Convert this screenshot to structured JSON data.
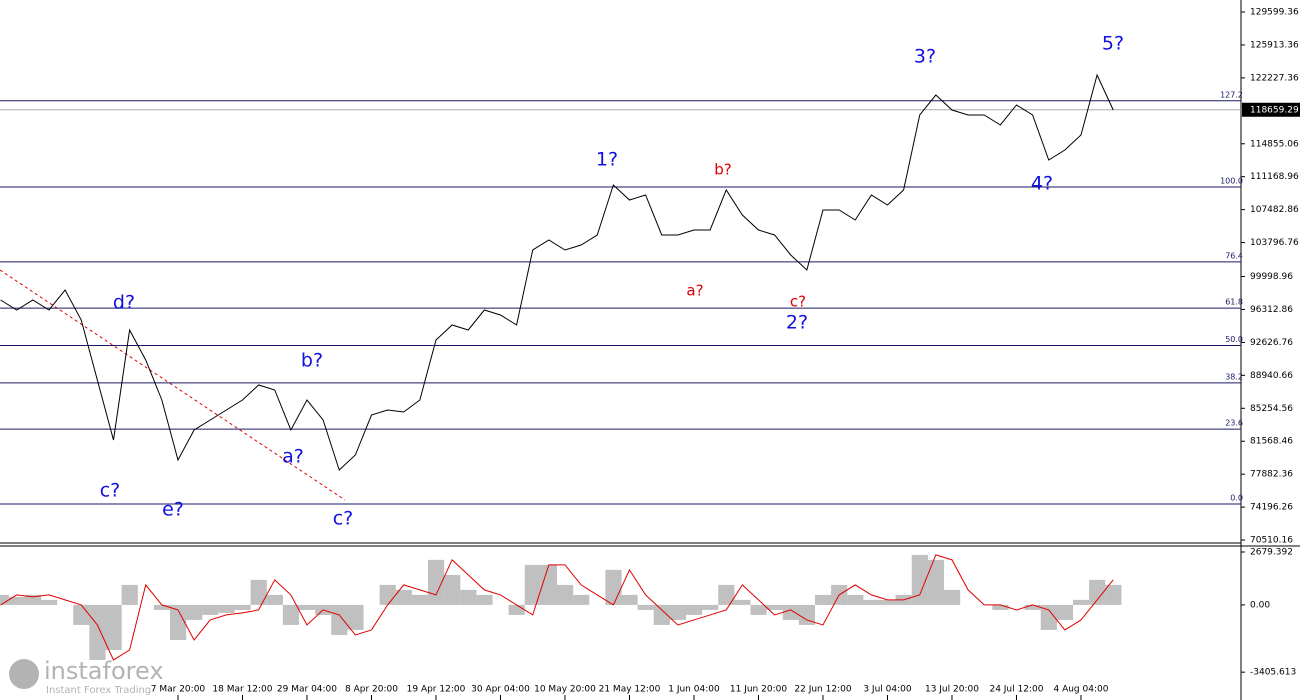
{
  "chart_data": {
    "type": "line",
    "categories": [
      null,
      null,
      null,
      null,
      null,
      null,
      null,
      null,
      null,
      null,
      null,
      "7 Mar 20:00",
      null,
      null,
      null,
      "18 Mar 12:00",
      null,
      null,
      null,
      "29 Mar 04:00",
      null,
      null,
      null,
      "8 Apr 20:00",
      null,
      null,
      null,
      "19 Apr 12:00",
      null,
      null,
      null,
      "30 Apr 04:00",
      null,
      null,
      null,
      "10 May 20:00",
      null,
      null,
      null,
      "21 May 12:00",
      null,
      null,
      null,
      "1 Jun 04:00",
      null,
      null,
      null,
      "11 Jun 20:00",
      null,
      null,
      null,
      "22 Jun 12:00",
      null,
      null,
      null,
      "3 Jul 04:00",
      null,
      null,
      null,
      "13 Jul 20:00",
      null,
      null,
      null,
      "24 Jul 12:00",
      null,
      null,
      null,
      "4 Aug 04:00",
      null,
      null
    ],
    "series": [
      {
        "color": "#000000",
        "values": [
          97372,
          96253,
          97372,
          96253,
          98491,
          95134,
          88420,
          81706,
          94015,
          90658,
          86182,
          79468,
          82825,
          83944,
          85063,
          86182,
          87861,
          87301,
          82825,
          86182,
          83944,
          78349,
          80027,
          84503,
          85063,
          84839,
          86182,
          92896,
          94575,
          94015,
          96253,
          95693,
          94575,
          102967,
          104086,
          102967,
          103527,
          104646,
          110241,
          108562,
          109122,
          104646,
          104646,
          105205,
          105205,
          109681,
          106884,
          105205,
          104646,
          102408,
          100729,
          107443,
          107443,
          106324,
          109122,
          108002,
          109681,
          118074,
          120311,
          118633,
          118074,
          118074,
          116955,
          119193,
          118074,
          113038,
          114157,
          115836,
          122550,
          118633
        ]
      }
    ],
    "ylim": [
      70292,
      130942
    ],
    "yticks": [
      129599.36,
      125913.36,
      122227.36,
      114855.06,
      111168.96,
      107482.86,
      103796.76,
      99998.96,
      96312.86,
      92626.76,
      88940.66,
      85254.56,
      81568.46,
      77882.36,
      74196.26,
      70510.16
    ],
    "last_price": 118659.29,
    "fib_color": "#1a1a66",
    "fib_levels": [
      {
        "value": 119666,
        "label": "127.2"
      },
      {
        "value": 110017,
        "label": "100.0"
      },
      {
        "value": 101645,
        "label": "76.4"
      },
      {
        "value": 96466,
        "label": "61.8"
      },
      {
        "value": 92281,
        "label": "50.0"
      },
      {
        "value": 88095,
        "label": "38.2"
      },
      {
        "value": 82916,
        "label": "23.6"
      },
      {
        "value": 74544,
        "label": "0.0"
      }
    ],
    "annotations": [
      {
        "text": "d?",
        "color": "#1010e0"
      },
      {
        "text": "c?",
        "color": "#1010e0"
      },
      {
        "text": "e?",
        "color": "#1010e0"
      },
      {
        "text": "b?",
        "color": "#1010e0"
      },
      {
        "text": "a?",
        "color": "#1010e0"
      },
      {
        "text": "c?",
        "color": "#1010e0"
      },
      {
        "text": "1?",
        "color": "#1010e0"
      },
      {
        "text": "a?",
        "color": "#e00000"
      },
      {
        "text": "b?",
        "color": "#e00000"
      },
      {
        "text": "c?",
        "color": "#e00000"
      },
      {
        "text": "2?",
        "color": "#1010e0"
      },
      {
        "text": "3?",
        "color": "#1010e0"
      },
      {
        "text": "4?",
        "color": "#1010e0"
      },
      {
        "text": "5?",
        "color": "#1010e0"
      }
    ],
    "indicator": {
      "ylim": [
        -4563,
        2933
      ],
      "yticks": [
        2679.392,
        {
          "value": 0,
          "label": "0.00"
        },
        -3405.613
      ],
      "hist_color": "#c0c0c0",
      "signal_color": "#e00000",
      "histogram": [
        507,
        406,
        507,
        254,
        0,
        -1014,
        -2789,
        -2282,
        1014,
        0,
        -254,
        -1775,
        -761,
        -507,
        -406,
        -254,
        1268,
        507,
        -1014,
        -254,
        -507,
        -1521,
        -1268,
        0,
        1014,
        761,
        507,
        2282,
        1521,
        761,
        507,
        0,
        -507,
        2028,
        2028,
        1014,
        507,
        0,
        1775,
        507,
        -254,
        -1014,
        -761,
        -507,
        -254,
        1014,
        254,
        -507,
        -254,
        -761,
        -1014,
        507,
        1014,
        507,
        254,
        254,
        507,
        2535,
        2282,
        761,
        0,
        0,
        -254,
        0,
        -254,
        -1268,
        -761,
        254,
        1268,
        1014
      ],
      "signal": [
        0,
        507,
        406,
        507,
        254,
        0,
        -1014,
        -2789,
        -2282,
        1014,
        0,
        -254,
        -1775,
        -761,
        -507,
        -406,
        -254,
        1268,
        507,
        -1014,
        -254,
        -507,
        -1521,
        -1268,
        0,
        1014,
        761,
        507,
        2282,
        1521,
        761,
        507,
        0,
        -507,
        2028,
        2028,
        1014,
        507,
        0,
        1775,
        507,
        -254,
        -1014,
        -761,
        -507,
        -254,
        1014,
        254,
        -507,
        -254,
        -761,
        -1014,
        507,
        1014,
        507,
        254,
        254,
        507,
        2535,
        2282,
        761,
        0,
        0,
        -254,
        0,
        -254,
        -1268,
        -761,
        254,
        1268
      ]
    }
  },
  "watermark": {
    "brand": "instaforex",
    "tagline": "Instant Forex Trading"
  }
}
